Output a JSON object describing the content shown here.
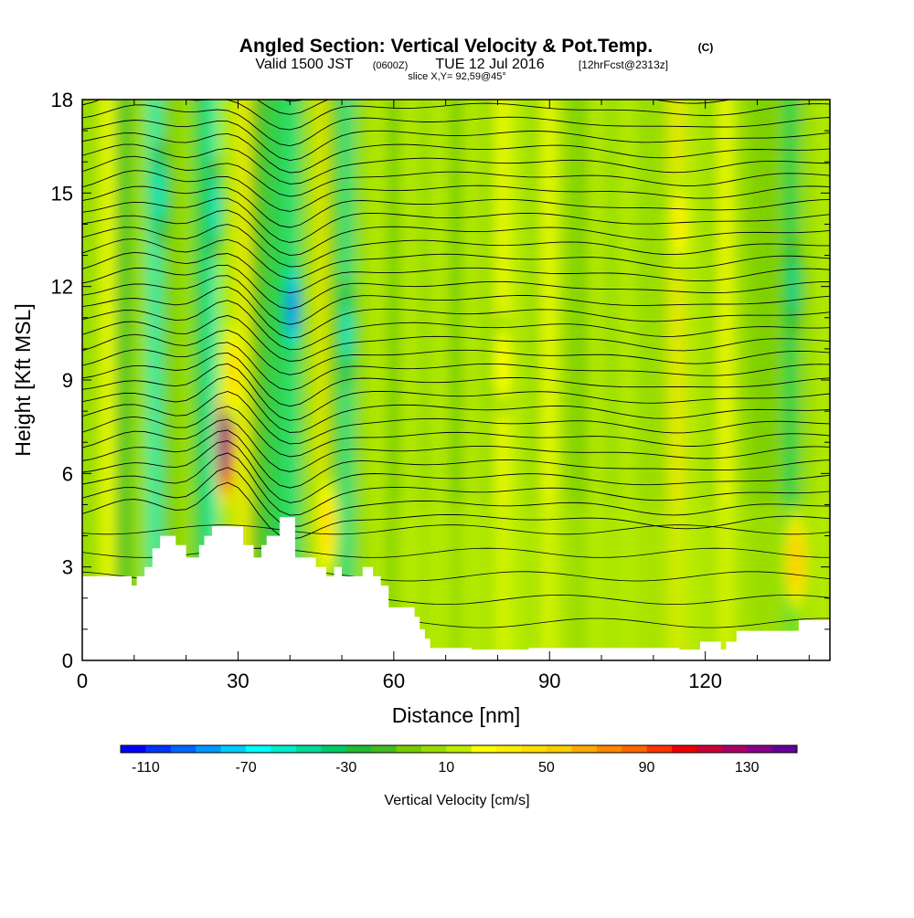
{
  "title": "Angled Section: Vertical Velocity & Pot.Temp.",
  "title_mark": "(C)",
  "subtitle": {
    "valid": "Valid 1500 JST",
    "zulu": "(0600Z)",
    "date": "TUE 12 Jul 2016",
    "forecast": "[12hrFcst@2313z]"
  },
  "slice_label": "slice X,Y= 92,59@45°",
  "chart_data": {
    "type": "heatmap",
    "xlabel": "Distance [nm]",
    "ylabel": "Height [Kft MSL]",
    "xlim": [
      0,
      144
    ],
    "ylim": [
      0,
      18
    ],
    "xticks": [
      0,
      30,
      60,
      90,
      120
    ],
    "xtick_labels": [
      "0",
      "30",
      "60",
      "90",
      "120"
    ],
    "yticks": [
      0,
      3,
      6,
      9,
      12,
      15,
      18
    ],
    "ytick_labels": [
      "0",
      "3",
      "6",
      "9",
      "12",
      "15",
      "18"
    ],
    "colorbar": {
      "title": "Vertical Velocity [cm/s]",
      "min": -120,
      "max": 150,
      "step": 10,
      "labels": [
        "-110",
        "-70",
        "-30",
        "10",
        "50",
        "90",
        "130"
      ],
      "label_values": [
        -110,
        -70,
        -30,
        10,
        50,
        90,
        130
      ],
      "colors": [
        "#0000ff",
        "#0033ff",
        "#0066ff",
        "#0099ff",
        "#00ccff",
        "#00ffff",
        "#00eecc",
        "#00dd99",
        "#00cc66",
        "#22bb33",
        "#44bb22",
        "#77cc00",
        "#99dd00",
        "#bbee00",
        "#ffff00",
        "#ffee00",
        "#ffdd00",
        "#ffcc00",
        "#ffaa00",
        "#ff8800",
        "#ff6600",
        "#ff3300",
        "#ee0000",
        "#cc0033",
        "#aa0066",
        "#880088",
        "#660099"
      ]
    },
    "updrafts": [
      {
        "x": 27.5,
        "y": 7.0,
        "w_peak": 140
      },
      {
        "x": 29.0,
        "y": 9.3,
        "w_peak": 45
      },
      {
        "x": 47.0,
        "y": 4.3,
        "w_peak": 40
      },
      {
        "x": 115.0,
        "y": 14.0,
        "w_peak": 30
      },
      {
        "x": 137.5,
        "y": 3.2,
        "w_peak": 50
      },
      {
        "x": 81.0,
        "y": 9.5,
        "w_peak": 25
      }
    ],
    "downdrafts": [
      {
        "x": 40.5,
        "y": 11.3,
        "w_peak": -100
      },
      {
        "x": 51.0,
        "y": 10.5,
        "w_peak": -60
      },
      {
        "x": 15.0,
        "y": 15.0,
        "w_peak": -55
      },
      {
        "x": 25.5,
        "y": 14.5,
        "w_peak": -55
      },
      {
        "x": 137.0,
        "y": 12.0,
        "w_peak": -45
      }
    ],
    "theta_contour_interval_K": 1,
    "terrain_profile": [
      [
        0,
        2.7
      ],
      [
        9.5,
        2.7
      ],
      [
        9.5,
        2.4
      ],
      [
        10.5,
        2.4
      ],
      [
        10.5,
        2.7
      ],
      [
        12,
        2.7
      ],
      [
        12,
        3.0
      ],
      [
        13.5,
        3.0
      ],
      [
        13.5,
        3.6
      ],
      [
        15,
        3.6
      ],
      [
        15,
        4.0
      ],
      [
        18,
        4.0
      ],
      [
        18,
        3.7
      ],
      [
        20,
        3.7
      ],
      [
        20,
        3.3
      ],
      [
        22.5,
        3.3
      ],
      [
        22.5,
        3.7
      ],
      [
        23.5,
        3.7
      ],
      [
        23.5,
        4.0
      ],
      [
        25,
        4.0
      ],
      [
        25,
        4.3
      ],
      [
        31,
        4.3
      ],
      [
        31,
        3.7
      ],
      [
        33,
        3.7
      ],
      [
        33,
        3.3
      ],
      [
        34.5,
        3.3
      ],
      [
        34.5,
        3.7
      ],
      [
        35.5,
        3.7
      ],
      [
        35.5,
        4.0
      ],
      [
        38,
        4.0
      ],
      [
        38,
        4.6
      ],
      [
        41,
        4.6
      ],
      [
        41,
        3.3
      ],
      [
        45,
        3.3
      ],
      [
        45,
        3.0
      ],
      [
        47,
        3.0
      ],
      [
        47,
        2.7
      ],
      [
        48.5,
        2.7
      ],
      [
        48.5,
        3.0
      ],
      [
        50,
        3.0
      ],
      [
        50,
        2.7
      ],
      [
        54,
        2.7
      ],
      [
        54,
        3.0
      ],
      [
        56,
        3.0
      ],
      [
        56,
        2.7
      ],
      [
        57.5,
        2.7
      ],
      [
        57.5,
        2.4
      ],
      [
        59,
        2.4
      ],
      [
        59,
        1.7
      ],
      [
        64,
        1.7
      ],
      [
        64,
        1.4
      ],
      [
        65,
        1.4
      ],
      [
        65,
        1.0
      ],
      [
        66,
        1.0
      ],
      [
        66,
        0.7
      ],
      [
        67,
        0.7
      ],
      [
        67,
        0.4
      ],
      [
        75,
        0.4
      ],
      [
        75,
        0.35
      ],
      [
        86,
        0.35
      ],
      [
        86,
        0.4
      ],
      [
        115,
        0.4
      ],
      [
        115,
        0.35
      ],
      [
        119,
        0.35
      ],
      [
        119,
        0.6
      ],
      [
        123,
        0.6
      ],
      [
        123,
        0.35
      ],
      [
        124,
        0.35
      ],
      [
        124,
        0.6
      ],
      [
        126,
        0.6
      ],
      [
        126,
        0.95
      ],
      [
        138,
        0.95
      ],
      [
        138,
        1.3
      ],
      [
        144,
        1.3
      ]
    ]
  }
}
